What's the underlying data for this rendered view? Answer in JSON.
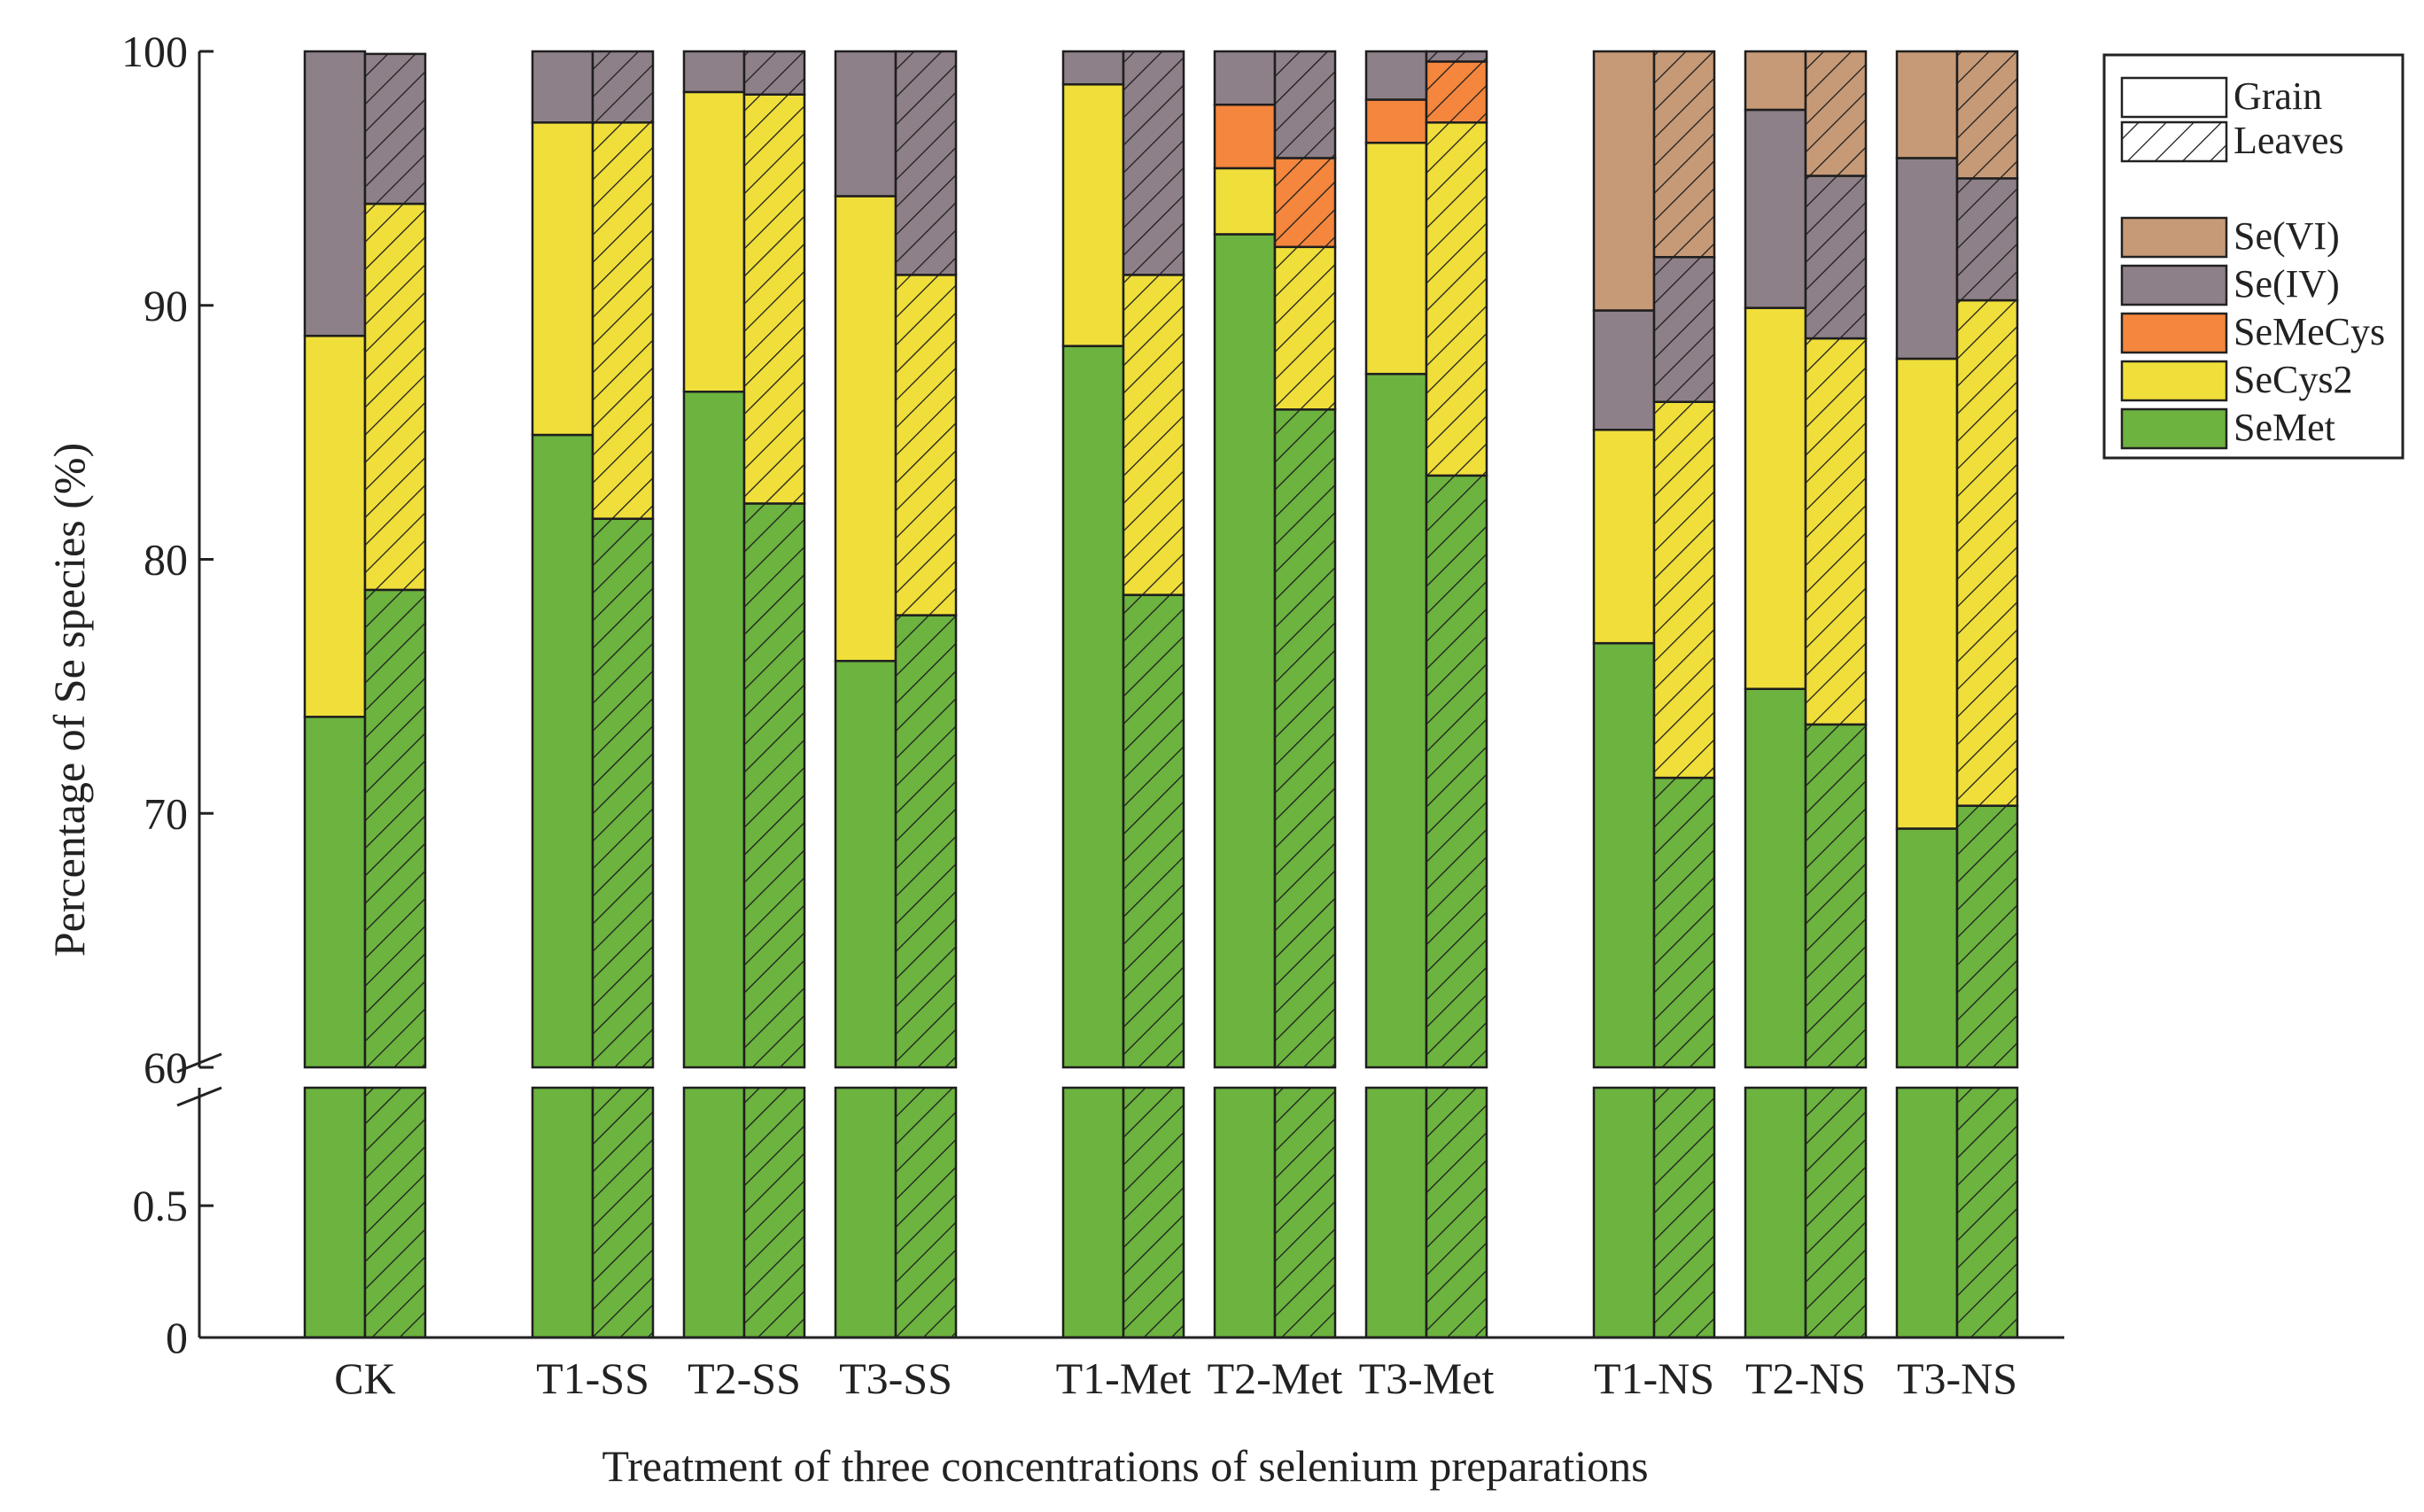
{
  "chart_data": {
    "type": "bar",
    "stacked": true,
    "xlabel": "Treatment of three concentrations of selenium preparations",
    "ylabel": "Percentage of Se species (%)",
    "axis_break": {
      "lower_ylim": [
        0,
        0.9
      ],
      "upper_ylim": [
        60,
        100
      ]
    },
    "yticks_lower": [
      "0",
      "0.5"
    ],
    "yticks_upper": [
      "60",
      "70",
      "80",
      "90",
      "100"
    ],
    "categories": [
      "CK",
      "T1-SS",
      "T2-SS",
      "T3-SS",
      "T1-Met",
      "T2-Met",
      "T3-Met",
      "T1-NS",
      "T2-NS",
      "T3-NS"
    ],
    "tissues": [
      "Grain",
      "Leaves"
    ],
    "series": [
      {
        "name": "SeMet",
        "color": "#6cb33f",
        "grain": [
          73.8,
          84.9,
          86.6,
          76.0,
          88.4,
          92.8,
          87.3,
          76.7,
          74.9,
          69.4
        ],
        "leaves": [
          78.8,
          81.6,
          82.2,
          77.8,
          78.6,
          85.9,
          83.3,
          71.4,
          73.5,
          70.3
        ]
      },
      {
        "name": "SeCys2",
        "color": "#f0df3a",
        "grain": [
          15.0,
          12.3,
          11.8,
          18.3,
          10.3,
          2.6,
          9.1,
          8.4,
          15.0,
          18.5
        ],
        "leaves": [
          15.2,
          15.6,
          16.1,
          13.4,
          12.6,
          6.4,
          13.9,
          14.8,
          15.2,
          19.9
        ]
      },
      {
        "name": "SeMeCys",
        "color": "#f5863d",
        "grain": [
          0,
          0,
          0,
          0,
          0,
          2.5,
          1.7,
          0,
          0,
          0
        ],
        "leaves": [
          0,
          0,
          0,
          0,
          0,
          3.5,
          2.4,
          0,
          0,
          0
        ]
      },
      {
        "name": "Se(IV)",
        "color": "#8e8088",
        "grain": [
          11.2,
          2.8,
          1.6,
          5.7,
          1.3,
          2.1,
          1.9,
          4.7,
          7.8,
          7.9
        ],
        "leaves": [
          5.9,
          2.8,
          1.7,
          8.8,
          8.8,
          4.2,
          0.4,
          5.7,
          6.4,
          4.8
        ]
      },
      {
        "name": "Se(VI)",
        "color": "#c79a77",
        "grain": [
          0,
          0,
          0,
          0,
          0,
          0,
          0,
          10.2,
          2.3,
          4.2
        ],
        "leaves": [
          0,
          0,
          0,
          0,
          0,
          0,
          0,
          8.1,
          4.9,
          5.0
        ]
      }
    ],
    "legend": {
      "tissue_entries": [
        "Grain",
        "Leaves"
      ],
      "species_entries": [
        "Se(VI)",
        "Se(IV)",
        "SeMeCys",
        "SeCys2",
        "SeMet"
      ],
      "position": "top-right"
    },
    "grid": false
  }
}
